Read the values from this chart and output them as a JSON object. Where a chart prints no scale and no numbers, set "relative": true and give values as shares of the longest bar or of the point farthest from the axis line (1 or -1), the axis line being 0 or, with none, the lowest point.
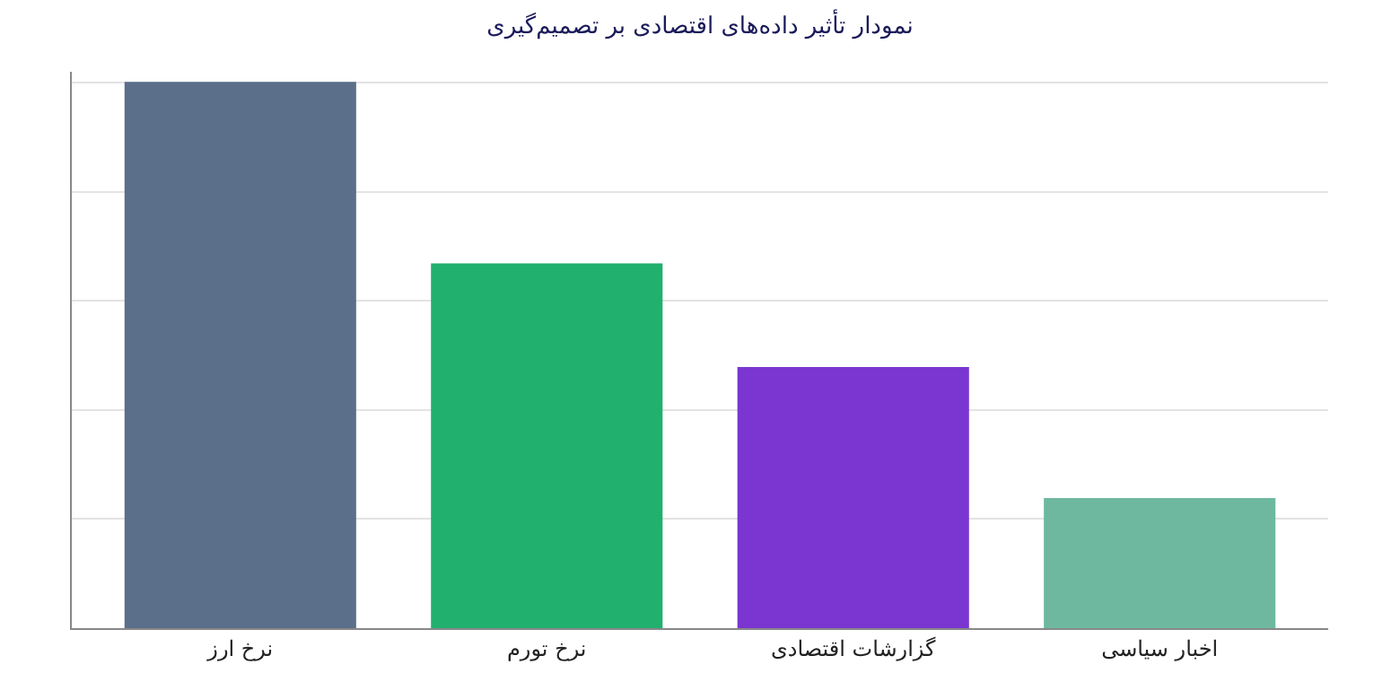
{
  "chart_data": {
    "type": "bar",
    "title": "نمودار تأثیر داده‌های اقتصادی بر تصمیم‌گیری",
    "categories": [
      "نرخ ارز",
      "نرخ تورم",
      "گزارشات اقتصادی",
      "اخبار سیاسی"
    ],
    "values": [
      1,
      0.667,
      0.477,
      0.237
    ],
    "colors": [
      "#5b6f8a",
      "#22b06e",
      "#7b35d0",
      "#6fb8a0"
    ],
    "relative": true,
    "grid": "y"
  }
}
